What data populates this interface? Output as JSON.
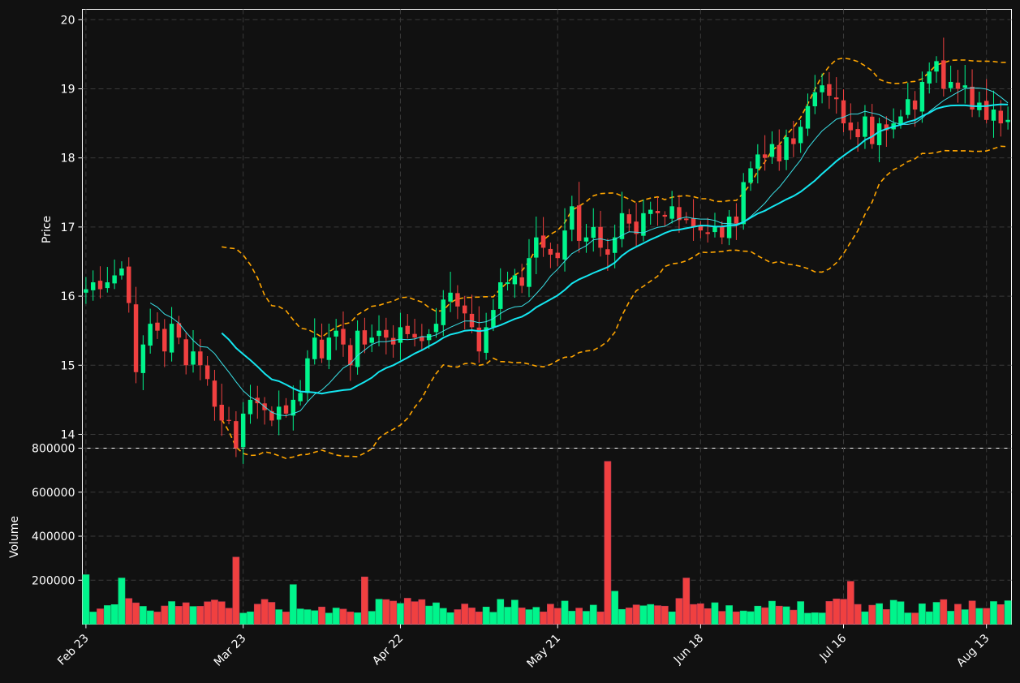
{
  "chart_data": {
    "type": "candlestick",
    "ylabel": "Price",
    "volume_label": "Volume",
    "price_ylim": [
      13.8,
      20.15
    ],
    "volume_ylim": [
      0,
      800000
    ],
    "price_ticks": [
      "14",
      "15",
      "16",
      "17",
      "18",
      "19",
      "20"
    ],
    "volume_ticks": [
      "200000",
      "400000",
      "600000",
      "800000"
    ],
    "x_tick_labels": [
      "Feb 23",
      "Mar 23",
      "Apr 22",
      "May 21",
      "Jun 18",
      "Jul 16",
      "Aug 13"
    ],
    "grid": true,
    "colors": {
      "background": "#111111",
      "up": "#00f58c",
      "down": "#f04040",
      "ma_fast": "#3ae0e6",
      "ma_slow": "#14e6f0",
      "bollinger": "#ffa500",
      "grid": "#3a3a3a"
    },
    "series": {
      "close": [
        16.1,
        16.2,
        16.1,
        16.2,
        16.3,
        16.4,
        15.9,
        14.9,
        15.3,
        15.6,
        15.5,
        15.2,
        15.6,
        15.4,
        15.0,
        15.2,
        15.0,
        14.8,
        14.4,
        14.2,
        14.2,
        13.8,
        14.3,
        14.5,
        14.45,
        14.35,
        14.2,
        14.4,
        14.3,
        14.5,
        14.6,
        15.1,
        15.4,
        15.1,
        15.4,
        15.5,
        15.3,
        15.0,
        15.5,
        15.3,
        15.4,
        15.5,
        15.4,
        15.3,
        15.55,
        15.45,
        15.4,
        15.35,
        15.45,
        15.6,
        15.95,
        16.05,
        15.85,
        15.75,
        15.55,
        15.2,
        15.55,
        15.8,
        16.2,
        16.2,
        16.3,
        16.15,
        16.55,
        16.85,
        16.7,
        16.6,
        16.55,
        16.95,
        17.3,
        16.8,
        16.85,
        17.0,
        16.7,
        16.6,
        16.85,
        17.2,
        17.05,
        16.9,
        17.2,
        17.25,
        17.2,
        17.15,
        17.3,
        17.1,
        17.1,
        17.0,
        16.95,
        16.9,
        17.0,
        16.85,
        17.15,
        17.05,
        17.65,
        17.85,
        18.05,
        18.0,
        18.2,
        17.95,
        18.3,
        18.2,
        18.45,
        18.75,
        18.95,
        19.05,
        18.9,
        18.85,
        18.5,
        18.4,
        18.3,
        18.6,
        18.2,
        18.5,
        18.4,
        18.5,
        18.6,
        18.85,
        18.7,
        19.1,
        19.25,
        19.4,
        19.0,
        19.1,
        19.0,
        19.05,
        18.7,
        18.8,
        18.55,
        18.7,
        18.5,
        18.55
      ]
    }
  }
}
